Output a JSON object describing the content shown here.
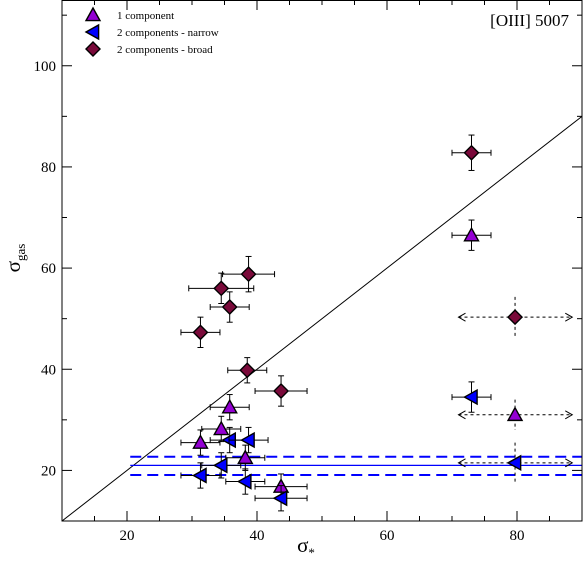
{
  "chart_data": {
    "type": "scatter",
    "annotation": "[OIII] 5007",
    "xlabel": {
      "symbol": "σ",
      "subscript": "*"
    },
    "ylabel": {
      "symbol": "σ",
      "subscript": "gas"
    },
    "xlim": [
      10,
      90
    ],
    "ylim": [
      10,
      113
    ],
    "xticks": [
      20,
      40,
      60,
      80
    ],
    "yticks": [
      20,
      40,
      60,
      80,
      100
    ],
    "grid": false,
    "legend_position": "top-left",
    "colors": {
      "purple": "#9400d3",
      "blue": "#0000ff",
      "maroon": "#7a0a3a",
      "dashed_line": "#0000ff"
    },
    "reference_lines": {
      "one_to_one": {
        "from": [
          10,
          10
        ],
        "to": [
          90,
          90
        ]
      },
      "horizontal_solid": {
        "y": 21,
        "x_from": 20.5,
        "x_to": 90
      },
      "horizontal_dashed": [
        {
          "y": 22.7,
          "x_from": 20.5,
          "x_to": 90
        },
        {
          "y": 19.1,
          "x_from": 20.5,
          "x_to": 90
        }
      ]
    },
    "series": [
      {
        "name": "1 component",
        "marker": "triangle-up",
        "color": "#9400d3",
        "points": [
          {
            "x": 73,
            "y": 66.5,
            "xerr": 3,
            "yerr": 3
          },
          {
            "x": 79.7,
            "y": 31,
            "xerr": 0,
            "yerr": 3,
            "upper_limit_x": true
          },
          {
            "x": 35.8,
            "y": 32.5,
            "xerr": 3,
            "yerr": 2.5
          },
          {
            "x": 34.5,
            "y": 28.2,
            "xerr": 3,
            "yerr": 2.5
          },
          {
            "x": 31.3,
            "y": 25.5,
            "xerr": 3,
            "yerr": 2.5
          },
          {
            "x": 38.2,
            "y": 22.5,
            "xerr": 3,
            "yerr": 2.5
          },
          {
            "x": 43.7,
            "y": 16.8,
            "xerr": 4,
            "yerr": 2.5
          }
        ]
      },
      {
        "name": "2 components - narrow",
        "marker": "triangle-left",
        "color": "#0000ff",
        "points": [
          {
            "x": 73,
            "y": 34.5,
            "xerr": 3,
            "yerr": 3
          },
          {
            "x": 79.7,
            "y": 21.5,
            "xerr": 0,
            "yerr": 4,
            "upper_limit_x": true
          },
          {
            "x": 35.8,
            "y": 26,
            "xerr": 3,
            "yerr": 2.5
          },
          {
            "x": 38.7,
            "y": 26,
            "xerr": 3,
            "yerr": 2.5
          },
          {
            "x": 34.5,
            "y": 21,
            "xerr": 3,
            "yerr": 2.5
          },
          {
            "x": 31.3,
            "y": 19,
            "xerr": 3,
            "yerr": 2.5
          },
          {
            "x": 38.2,
            "y": 17.8,
            "xerr": 3,
            "yerr": 2.5
          },
          {
            "x": 43.7,
            "y": 14.5,
            "xerr": 4,
            "yerr": 2.5
          }
        ]
      },
      {
        "name": "2 components - broad",
        "marker": "diamond",
        "color": "#7a0a3a",
        "points": [
          {
            "x": 73,
            "y": 82.8,
            "xerr": 3,
            "yerr": 3.5
          },
          {
            "x": 79.7,
            "y": 50.3,
            "xerr": 0,
            "yerr": 4,
            "upper_limit_x": true
          },
          {
            "x": 38.7,
            "y": 58.8,
            "xerr": 4,
            "yerr": 3.5
          },
          {
            "x": 34.5,
            "y": 56,
            "xerr": 5,
            "yerr": 3
          },
          {
            "x": 35.8,
            "y": 52.3,
            "xerr": 3,
            "yerr": 3
          },
          {
            "x": 31.3,
            "y": 47.3,
            "xerr": 3,
            "yerr": 3
          },
          {
            "x": 38.5,
            "y": 39.8,
            "xerr": 3,
            "yerr": 2.5
          },
          {
            "x": 43.7,
            "y": 35.7,
            "xerr": 4,
            "yerr": 3
          }
        ]
      }
    ]
  }
}
